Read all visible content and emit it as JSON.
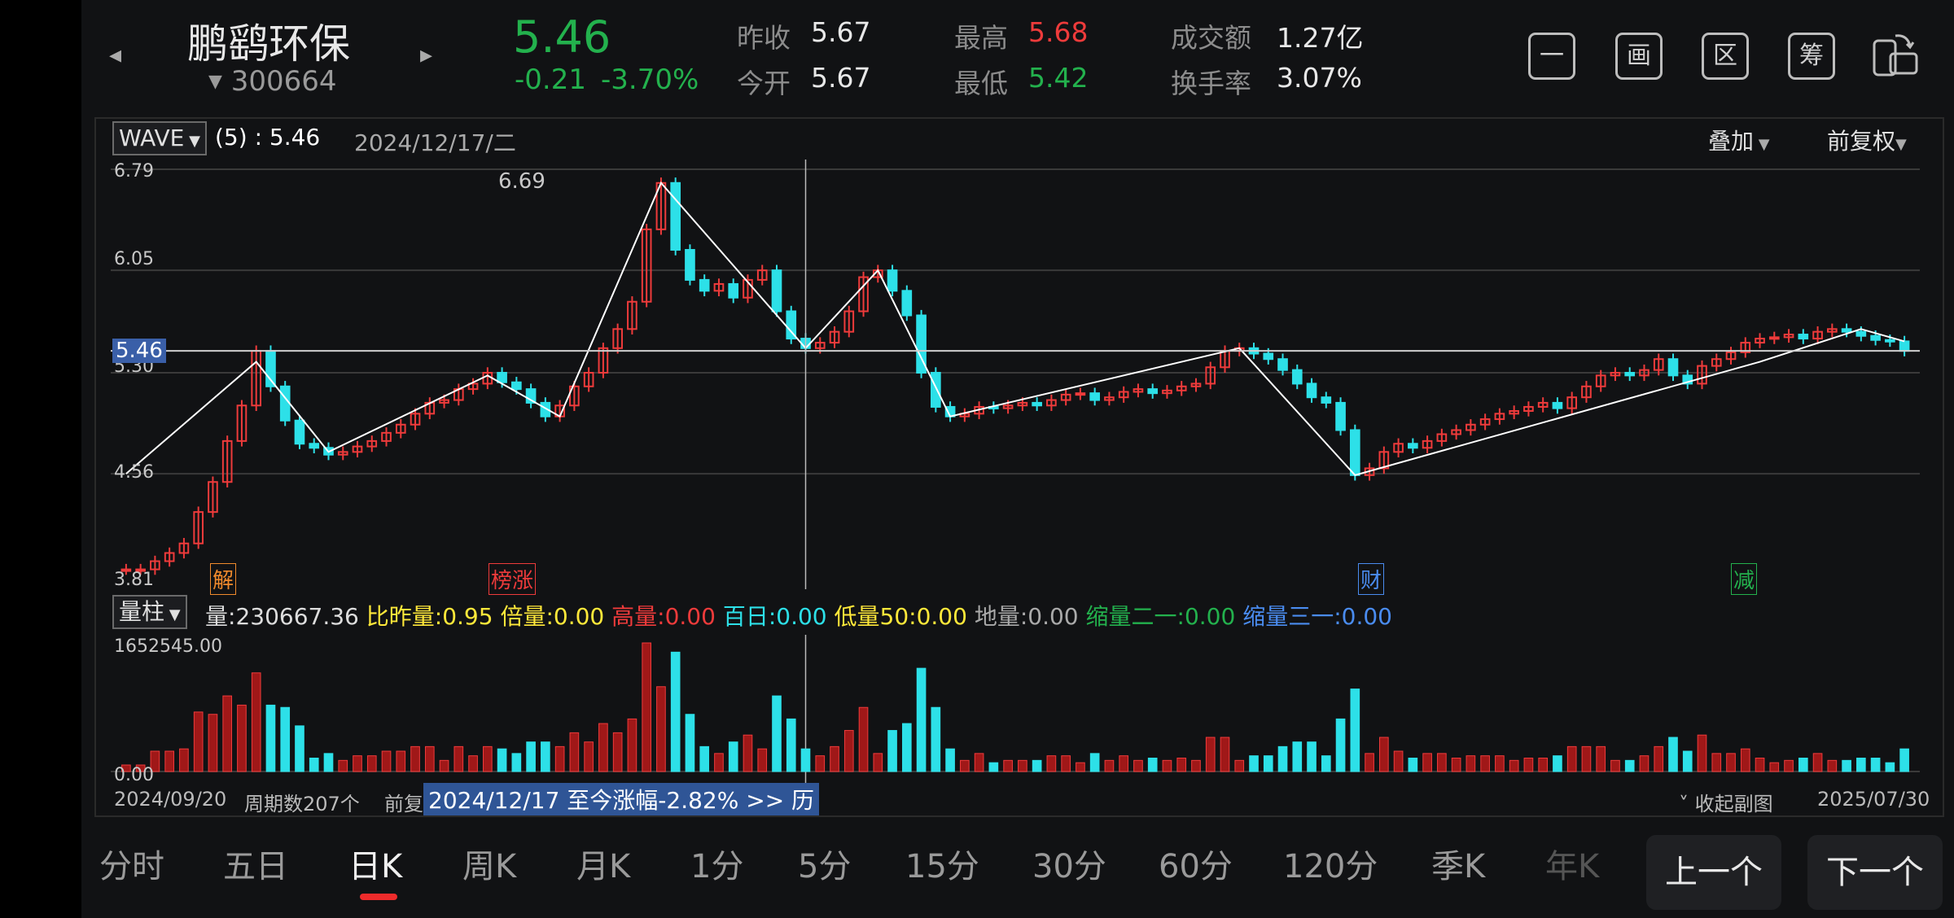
{
  "header": {
    "name": "鹏鹞环保",
    "code": "300664",
    "price": "5.46",
    "change": "-0.21",
    "change_pct": "-3.70%",
    "prev_close_label": "昨收",
    "prev_close": "5.67",
    "open_label": "今开",
    "open": "5.67",
    "high_label": "最高",
    "high": "5.68",
    "low_label": "最低",
    "low": "5.42",
    "turnover_label": "成交额",
    "turnover": "1.27亿",
    "rate_label": "换手率",
    "rate": "3.07%",
    "buttons": [
      "一",
      "画",
      "区",
      "筹"
    ]
  },
  "main_chart": {
    "indicator": "WAVE",
    "indicator_value": "(5) : 5.46",
    "date": "2024/12/17/二",
    "overlay": "叠加",
    "adjust": "前复权",
    "y_ticks": [
      "6.79",
      "6.05",
      "5.30",
      "4.56",
      "3.81"
    ],
    "current_price_tag": "5.46",
    "peak_label": "6.69",
    "markers": [
      "解",
      "榜涨",
      "财",
      "减"
    ]
  },
  "volume": {
    "selector": "量柱",
    "vol_label": "量:",
    "vol_value": "230667.36",
    "ratio_label": "比昨量:",
    "ratio": "0.95",
    "beiliang_label": "倍量:",
    "beiliang": "0.00",
    "gaoliang_label": "高量:",
    "gaoliang": "0.00",
    "bairi_label": "百日:",
    "bairi": "0.00",
    "diliang_label": "低量50:",
    "diliang": "0.00",
    "diliang2_label": "地量:",
    "diliang2": "0.00",
    "suo21_label": "缩量二一:",
    "suo21": "0.00",
    "suo31_label": "缩量三一:",
    "suo31": "0.00",
    "max": "1652545.00",
    "min": "0.00"
  },
  "footer": {
    "start": "2024/09/20",
    "periods": "周期数207个",
    "prev_text": "前复",
    "tooltip": "2024/12/17 至今涨幅-2.82%  >> 历",
    "collapse": "收起副图",
    "end": "2025/07/30"
  },
  "tabs": [
    "分时",
    "五日",
    "日K",
    "周K",
    "月K",
    "1分",
    "5分",
    "15分",
    "30分",
    "60分",
    "120分",
    "季K",
    "年K"
  ],
  "active_tab": "日K",
  "nav": {
    "prev": "上一个",
    "next": "下一个"
  },
  "colors": {
    "up": "#ee3b3b",
    "down": "#2de0e8",
    "bg": "#111214"
  },
  "chart_data": {
    "type": "candlestick",
    "ylim": [
      3.81,
      6.79
    ],
    "close": [
      3.86,
      3.86,
      3.92,
      3.98,
      4.05,
      4.28,
      4.5,
      4.8,
      5.06,
      5.46,
      5.2,
      4.95,
      4.78,
      4.75,
      4.7,
      4.72,
      4.76,
      4.8,
      4.86,
      4.92,
      5.0,
      5.08,
      5.1,
      5.18,
      5.22,
      5.3,
      5.23,
      5.18,
      5.08,
      4.98,
      5.06,
      5.2,
      5.3,
      5.48,
      5.62,
      5.82,
      6.35,
      6.69,
      6.2,
      5.98,
      5.9,
      5.95,
      5.85,
      5.98,
      6.05,
      5.75,
      5.55,
      5.48,
      5.52,
      5.6,
      5.75,
      6.0,
      6.05,
      5.9,
      5.72,
      5.3,
      5.05,
      4.98,
      5.0,
      5.05,
      5.04,
      5.06,
      5.08,
      5.06,
      5.1,
      5.14,
      5.15,
      5.1,
      5.12,
      5.16,
      5.18,
      5.15,
      5.17,
      5.2,
      5.22,
      5.34,
      5.46,
      5.48,
      5.44,
      5.4,
      5.32,
      5.22,
      5.12,
      5.08,
      4.88,
      4.55,
      4.6,
      4.72,
      4.78,
      4.75,
      4.8,
      4.85,
      4.88,
      4.92,
      4.96,
      5.0,
      5.02,
      5.05,
      5.08,
      5.04,
      5.12,
      5.2,
      5.28,
      5.3,
      5.28,
      5.32,
      5.4,
      5.28,
      5.22,
      5.35,
      5.4,
      5.45,
      5.52,
      5.55,
      5.56,
      5.58,
      5.55,
      5.6,
      5.62,
      5.6,
      5.57,
      5.54,
      5.53,
      5.46
    ]
  }
}
